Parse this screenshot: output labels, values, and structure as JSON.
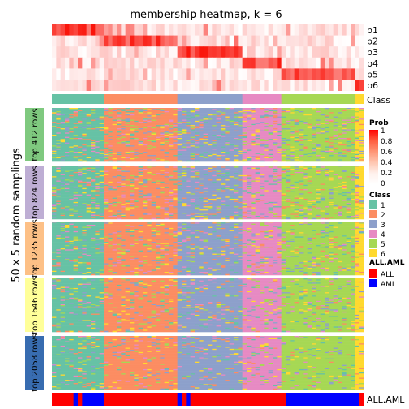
{
  "chart_data": {
    "type": "heatmap",
    "title": "membership heatmap, k = 6",
    "ylabel": "50 x 5 random samplings",
    "membership_rows": [
      "p1",
      "p2",
      "p3",
      "p4",
      "p5",
      "p6"
    ],
    "class_row_label": "Class",
    "allaml_row_label": "ALL.AML",
    "prob_legend": {
      "title": "Prob",
      "ticks": [
        "1",
        "0.8",
        "0.6",
        "0.4",
        "0.2",
        "0"
      ],
      "colors": [
        "#ff0000",
        "#ff5d3f",
        "#ff9576",
        "#ffc6b0",
        "#fff1ec",
        "#ffffff"
      ]
    },
    "class_legend": {
      "title": "Class",
      "items": [
        {
          "label": "1",
          "color": "#66c2a5"
        },
        {
          "label": "2",
          "color": "#fc8d62"
        },
        {
          "label": "3",
          "color": "#8da0cb"
        },
        {
          "label": "4",
          "color": "#e78ac3"
        },
        {
          "label": "5",
          "color": "#a6d854"
        },
        {
          "label": "6",
          "color": "#ffd92f"
        }
      ]
    },
    "allaml_legend": {
      "title": "ALL.AML",
      "items": [
        {
          "label": "ALL",
          "color": "#ff0000"
        },
        {
          "label": "AML",
          "color": "#0000ff"
        }
      ]
    },
    "groups": [
      {
        "label": "top 412 rows",
        "color": "#7fc97f"
      },
      {
        "label": "top 824 rows",
        "color": "#beaed4"
      },
      {
        "label": "top 1235 rows",
        "color": "#fdc086"
      },
      {
        "label": "top 1646 rows",
        "color": "#ffff99"
      },
      {
        "label": "top 2058 rows",
        "color": "#386cb0"
      }
    ],
    "samples": 72,
    "class_segments": [
      {
        "class": 1,
        "count": 12
      },
      {
        "class": 2,
        "count": 17
      },
      {
        "class": 3,
        "count": 15
      },
      {
        "class": 4,
        "count": 9
      },
      {
        "class": 5,
        "count": 17
      },
      {
        "class": 6,
        "count": 2
      }
    ],
    "allaml_segments": [
      {
        "type": "ALL",
        "count": 5
      },
      {
        "type": "AML",
        "count": 1
      },
      {
        "type": "ALL",
        "count": 1
      },
      {
        "type": "AML",
        "count": 5
      },
      {
        "type": "ALL",
        "count": 17
      },
      {
        "type": "AML",
        "count": 1
      },
      {
        "type": "ALL",
        "count": 1
      },
      {
        "type": "AML",
        "count": 1
      },
      {
        "type": "ALL",
        "count": 22
      },
      {
        "type": "AML",
        "count": 17
      },
      {
        "type": "ALL",
        "count": 1
      }
    ]
  }
}
